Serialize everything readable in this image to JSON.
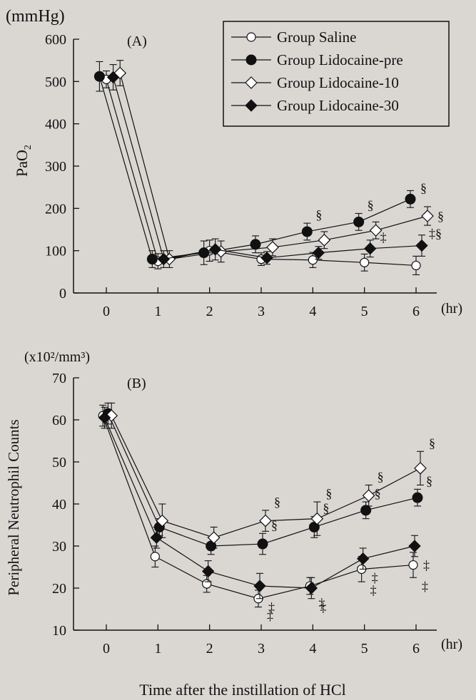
{
  "legend": {
    "items": [
      {
        "label": "Group Saline",
        "marker": "open-circle"
      },
      {
        "label": "Group Lidocaine-pre",
        "marker": "filled-circle"
      },
      {
        "label": "Group Lidocaine-10",
        "marker": "open-diamond"
      },
      {
        "label": "Group Lidocaine-30",
        "marker": "filled-diamond"
      }
    ]
  },
  "xlabel": "Time after the instillation of HCl",
  "chart_data": [
    {
      "type": "line",
      "panel_label": "(A)",
      "unit_label": "(mmHg)",
      "ylabel": "PaO",
      "ylabel_sub": "2",
      "x": [
        0,
        1,
        2,
        3,
        4,
        5,
        6
      ],
      "x_unit": "(hr)",
      "xlim": [
        0,
        6
      ],
      "ylim": [
        0,
        600
      ],
      "yticks": [
        0,
        100,
        200,
        300,
        400,
        500,
        600
      ],
      "grid": false,
      "legend_position": "top-right",
      "series": [
        {
          "name": "Group Saline",
          "marker": "open-circle",
          "values": [
            505,
            75,
            100,
            80,
            78,
            72,
            65
          ],
          "err": [
            20,
            18,
            25,
            15,
            18,
            20,
            22
          ],
          "annotations": [
            "",
            "",
            "",
            "",
            "",
            "",
            ""
          ]
        },
        {
          "name": "Group Lidocaine-pre",
          "marker": "filled-circle",
          "values": [
            512,
            80,
            95,
            115,
            145,
            168,
            222
          ],
          "err": [
            35,
            20,
            28,
            20,
            20,
            20,
            20
          ],
          "annotations": [
            "",
            "",
            "",
            "",
            "§",
            "§",
            "§"
          ]
        },
        {
          "name": "Group Lidocaine-10",
          "marker": "open-diamond",
          "values": [
            520,
            80,
            98,
            108,
            125,
            148,
            182
          ],
          "err": [
            30,
            20,
            25,
            20,
            20,
            20,
            22
          ],
          "annotations": [
            "",
            "",
            "",
            "",
            "",
            "",
            "§"
          ]
        },
        {
          "name": "Group Lidocaine-30",
          "marker": "filled-diamond",
          "values": [
            510,
            80,
            103,
            83,
            95,
            105,
            112
          ],
          "err": [
            30,
            20,
            25,
            15,
            15,
            20,
            25
          ],
          "annotations": [
            "",
            "",
            "",
            "",
            "",
            "‡",
            "‡§"
          ]
        }
      ]
    },
    {
      "type": "line",
      "panel_label": "(B)",
      "unit_label": "(x10²/mm³)",
      "ylabel": "Peripheral Neutrophil Counts",
      "x": [
        0,
        1,
        2,
        3,
        4,
        5,
        6
      ],
      "x_unit": "(hr)",
      "xlim": [
        0,
        6
      ],
      "ylim": [
        10,
        70
      ],
      "yticks": [
        10,
        20,
        30,
        40,
        50,
        60,
        70
      ],
      "grid": false,
      "series": [
        {
          "name": "Group Saline",
          "marker": "open-circle",
          "values": [
            61,
            27.5,
            21,
            17.5,
            20.5,
            24.5,
            25.5
          ],
          "err": [
            2.5,
            2.5,
            2.0,
            2.0,
            2.0,
            3.0,
            3.0
          ],
          "annotations": [
            "",
            "",
            "",
            "‡",
            "‡",
            "‡",
            "‡"
          ]
        },
        {
          "name": "Group Lidocaine-pre",
          "marker": "filled-circle",
          "values": [
            61.5,
            34.5,
            30,
            30.5,
            34.5,
            38.5,
            41.5
          ],
          "err": [
            2.5,
            2.0,
            2.0,
            2.5,
            2.5,
            2.0,
            2.0
          ],
          "annotations": [
            "",
            "",
            "",
            "§",
            "§",
            "§",
            "§"
          ]
        },
        {
          "name": "Group Lidocaine-10",
          "marker": "open-diamond",
          "values": [
            61,
            36,
            32,
            36,
            36.5,
            42,
            48.5
          ],
          "err": [
            3.0,
            4.0,
            2.5,
            2.5,
            4.0,
            2.5,
            4.0
          ],
          "annotations": [
            "",
            "",
            "",
            "§",
            "§",
            "§",
            "§"
          ]
        },
        {
          "name": "Group Lidocaine-30",
          "marker": "filled-diamond",
          "values": [
            60.5,
            32,
            24,
            20.5,
            20,
            27,
            30
          ],
          "err": [
            2.5,
            2.5,
            2.5,
            3.0,
            2.5,
            2.5,
            2.5
          ],
          "annotations": [
            "",
            "",
            "",
            "‡",
            "‡",
            "‡",
            "‡"
          ]
        }
      ]
    }
  ]
}
